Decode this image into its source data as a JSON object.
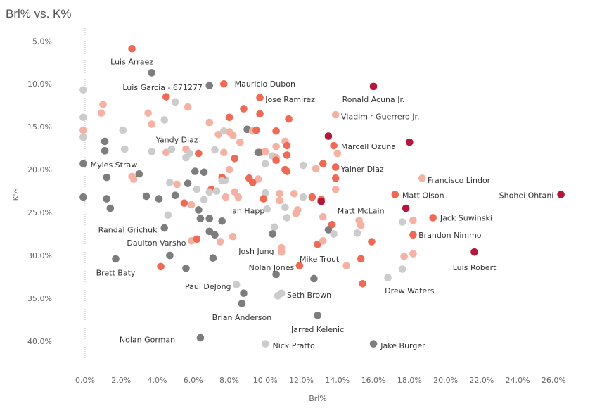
{
  "chart_data": {
    "type": "scatter",
    "title": "Brl% vs. K%",
    "xlabel": "Brl%",
    "ylabel": "K%",
    "xlim": [
      -0.7,
      27.0
    ],
    "ylim": [
      3.5,
      42.3
    ],
    "y_inverted": true,
    "x_ticks": [
      0,
      2,
      4,
      6,
      8,
      10,
      12,
      14,
      16,
      18,
      20,
      22,
      24,
      26
    ],
    "x_tick_labels": [
      "0.0%",
      "2.0%",
      "4.0%",
      "6.0%",
      "8.0%",
      "10.0%",
      "12.0%",
      "14.0%",
      "16.0%",
      "18.0%",
      "20.0%",
      "22.0%",
      "24.0%",
      "26.0%"
    ],
    "y_ticks": [
      5,
      10,
      15,
      20,
      25,
      30,
      35,
      40
    ],
    "y_tick_labels": [
      "5.0%",
      "10.0%",
      "15.0%",
      "20.0%",
      "25.0%",
      "30.0%",
      "35.0%",
      "40.0%"
    ],
    "reference_line_x": 0,
    "colors": {
      "high": "#b2183c",
      "mid": "#ee6a55",
      "light": "#f5b1a3",
      "grey_light": "#cccccc",
      "grey_dark": "#7d7d7d"
    },
    "points": [
      {
        "x": 2.6,
        "y": 5.9,
        "c": "mid",
        "label": "Luis Arraez",
        "lx": 2.6,
        "ly": 7.4,
        "anchor": "middle"
      },
      {
        "x": 3.7,
        "y": 8.7,
        "c": "grey_dark",
        "label": "Luis Garcia - 671277",
        "lx": 4.3,
        "ly": 10.4,
        "anchor": "middle"
      },
      {
        "x": 6.9,
        "y": 10.2,
        "c": "grey_dark"
      },
      {
        "x": 7.7,
        "y": 10.0,
        "c": "mid",
        "label": "Mauricio Dubon",
        "lx": 8.3,
        "ly": 10.0,
        "anchor": "start"
      },
      {
        "x": 16.0,
        "y": 10.3,
        "c": "high",
        "label": "Ronald Acuna Jr.",
        "lx": 16.0,
        "ly": 11.8,
        "anchor": "middle"
      },
      {
        "x": 9.7,
        "y": 11.6,
        "c": "mid",
        "label": "Jose Ramirez",
        "lx": 10.0,
        "ly": 11.8,
        "anchor": "start"
      },
      {
        "x": 13.9,
        "y": 13.6,
        "c": "light",
        "label": "Vladimir Guerrero Jr.",
        "lx": 14.2,
        "ly": 13.8,
        "anchor": "start"
      },
      {
        "x": 13.8,
        "y": 17.2,
        "c": "mid",
        "label": "Marcell Ozuna",
        "lx": 14.2,
        "ly": 17.3,
        "anchor": "start"
      },
      {
        "x": 4.5,
        "y": 18.0,
        "c": "light",
        "label": "Yandy Diaz",
        "lx": 5.1,
        "ly": 16.5,
        "anchor": "middle"
      },
      {
        "x": 13.9,
        "y": 19.7,
        "c": "mid",
        "label": "Yainer Diaz",
        "lx": 14.2,
        "ly": 19.9,
        "anchor": "start"
      },
      {
        "x": -0.1,
        "y": 19.3,
        "c": "grey_dark",
        "label": "Myles Straw",
        "lx": 0.3,
        "ly": 19.4,
        "anchor": "start"
      },
      {
        "x": 18.7,
        "y": 21.0,
        "c": "light",
        "label": "Francisco Lindor",
        "lx": 19.0,
        "ly": 21.2,
        "anchor": "start"
      },
      {
        "x": 17.2,
        "y": 22.9,
        "c": "mid",
        "label": "Matt Olson",
        "lx": 17.6,
        "ly": 23.0,
        "anchor": "start"
      },
      {
        "x": 26.4,
        "y": 22.9,
        "c": "high",
        "label": "Shohei Ohtani",
        "lx": 26.0,
        "ly": 23.0,
        "anchor": "end"
      },
      {
        "x": 7.8,
        "y": 23.2,
        "c": "light",
        "label": "Ian Happ",
        "lx": 9.0,
        "ly": 24.8,
        "anchor": "middle"
      },
      {
        "x": 13.7,
        "y": 26.4,
        "c": "mid",
        "label": "Matt McLain",
        "lx": 14.0,
        "ly": 24.8,
        "anchor": "start"
      },
      {
        "x": 19.3,
        "y": 25.6,
        "c": "mid",
        "label": "Jack Suwinski",
        "lx": 19.7,
        "ly": 25.6,
        "anchor": "start"
      },
      {
        "x": 4.4,
        "y": 26.8,
        "c": "grey_dark",
        "label": "Randal Grichuk",
        "lx": 4.0,
        "ly": 27.0,
        "anchor": "end"
      },
      {
        "x": 18.2,
        "y": 27.6,
        "c": "mid",
        "label": "Brandon Nimmo",
        "lx": 18.5,
        "ly": 27.6,
        "anchor": "start"
      },
      {
        "x": 5.9,
        "y": 28.3,
        "c": "light",
        "label": "Daulton Varsho",
        "lx": 5.6,
        "ly": 28.5,
        "anchor": "end"
      },
      {
        "x": 10.9,
        "y": 29.1,
        "c": "light",
        "label": "Josh Jung",
        "lx": 9.5,
        "ly": 29.5,
        "anchor": "middle"
      },
      {
        "x": 12.9,
        "y": 28.7,
        "c": "mid",
        "label": "Mike Trout",
        "lx": 13.0,
        "ly": 30.4,
        "anchor": "middle"
      },
      {
        "x": 21.6,
        "y": 29.6,
        "c": "high",
        "label": "Luis Robert",
        "lx": 21.6,
        "ly": 31.4,
        "anchor": "middle"
      },
      {
        "x": 1.7,
        "y": 30.4,
        "c": "grey_dark",
        "label": "Brett Baty",
        "lx": 1.7,
        "ly": 32.0,
        "anchor": "middle"
      },
      {
        "x": 11.9,
        "y": 31.2,
        "c": "mid",
        "label": "Nolan Jones",
        "lx": 11.6,
        "ly": 31.4,
        "anchor": "end"
      },
      {
        "x": 8.4,
        "y": 33.4,
        "c": "grey_light",
        "label": "Paul DeJong",
        "lx": 8.1,
        "ly": 33.6,
        "anchor": "end"
      },
      {
        "x": 16.8,
        "y": 32.6,
        "c": "grey_light",
        "label": "Drew Waters",
        "lx": 18.0,
        "ly": 34.1,
        "anchor": "middle"
      },
      {
        "x": 10.9,
        "y": 34.4,
        "c": "grey_light",
        "label": "Seth Brown",
        "lx": 11.2,
        "ly": 34.6,
        "anchor": "start"
      },
      {
        "x": 8.7,
        "y": 35.6,
        "c": "grey_dark",
        "label": "Brian Anderson",
        "lx": 8.7,
        "ly": 37.2,
        "anchor": "middle"
      },
      {
        "x": 12.9,
        "y": 37.0,
        "c": "grey_dark",
        "label": "Jarred Kelenic",
        "lx": 12.9,
        "ly": 38.6,
        "anchor": "middle"
      },
      {
        "x": 6.4,
        "y": 39.6,
        "c": "grey_dark",
        "label": "Nolan Gorman",
        "lx": 5.0,
        "ly": 39.8,
        "anchor": "end"
      },
      {
        "x": 10.0,
        "y": 40.3,
        "c": "grey_light",
        "label": "Nick Pratto",
        "lx": 10.4,
        "ly": 40.5,
        "anchor": "start"
      },
      {
        "x": 16.0,
        "y": 40.3,
        "c": "grey_dark",
        "label": "Jake Burger",
        "lx": 16.4,
        "ly": 40.5,
        "anchor": "start"
      },
      {
        "x": -0.1,
        "y": 10.7,
        "c": "grey_light"
      },
      {
        "x": 1.0,
        "y": 12.4,
        "c": "light"
      },
      {
        "x": 0.9,
        "y": 13.4,
        "c": "light"
      },
      {
        "x": -0.1,
        "y": 13.9,
        "c": "grey_light"
      },
      {
        "x": -0.1,
        "y": 15.4,
        "c": "light"
      },
      {
        "x": -0.1,
        "y": 16.2,
        "c": "grey_light"
      },
      {
        "x": 1.1,
        "y": 16.7,
        "c": "grey_dark"
      },
      {
        "x": 1.1,
        "y": 17.8,
        "c": "grey_dark"
      },
      {
        "x": 2.1,
        "y": 15.4,
        "c": "grey_light"
      },
      {
        "x": 2.2,
        "y": 17.6,
        "c": "grey_light"
      },
      {
        "x": 3.5,
        "y": 13.4,
        "c": "light"
      },
      {
        "x": 3.7,
        "y": 14.7,
        "c": "light"
      },
      {
        "x": 3.7,
        "y": 17.9,
        "c": "grey_light"
      },
      {
        "x": 4.4,
        "y": 14.2,
        "c": "grey_light"
      },
      {
        "x": 4.5,
        "y": 11.5,
        "c": "mid"
      },
      {
        "x": 5.0,
        "y": 12.1,
        "c": "grey_light"
      },
      {
        "x": 5.7,
        "y": 12.7,
        "c": "light"
      },
      {
        "x": 4.8,
        "y": 17.6,
        "c": "grey_light"
      },
      {
        "x": 5.6,
        "y": 17.6,
        "c": "light"
      },
      {
        "x": 5.6,
        "y": 18.6,
        "c": "grey_light"
      },
      {
        "x": 5.8,
        "y": 18.1,
        "c": "grey_light"
      },
      {
        "x": 6.3,
        "y": 18.1,
        "c": "mid"
      },
      {
        "x": 6.9,
        "y": 14.5,
        "c": "light"
      },
      {
        "x": 7.2,
        "y": 17.7,
        "c": "grey_light"
      },
      {
        "x": 7.4,
        "y": 15.9,
        "c": "light"
      },
      {
        "x": 7.7,
        "y": 15.5,
        "c": "grey_light"
      },
      {
        "x": 7.7,
        "y": 18.0,
        "c": "light"
      },
      {
        "x": 8.0,
        "y": 13.9,
        "c": "mid"
      },
      {
        "x": 8.0,
        "y": 15.6,
        "c": "light"
      },
      {
        "x": 8.3,
        "y": 18.7,
        "c": "mid"
      },
      {
        "x": 8.2,
        "y": 16.0,
        "c": "light"
      },
      {
        "x": 8.6,
        "y": 16.8,
        "c": "light"
      },
      {
        "x": 8.8,
        "y": 12.9,
        "c": "mid"
      },
      {
        "x": 9.0,
        "y": 15.3,
        "c": "grey_dark"
      },
      {
        "x": 9.3,
        "y": 15.5,
        "c": "light"
      },
      {
        "x": 9.5,
        "y": 15.4,
        "c": "mid"
      },
      {
        "x": 9.7,
        "y": 13.5,
        "c": "mid"
      },
      {
        "x": 9.7,
        "y": 18.0,
        "c": "mid"
      },
      {
        "x": 9.6,
        "y": 18.0,
        "c": "grey_dark"
      },
      {
        "x": 10.0,
        "y": 17.9,
        "c": "light"
      },
      {
        "x": 10.0,
        "y": 19.3,
        "c": "grey_light"
      },
      {
        "x": 10.4,
        "y": 18.4,
        "c": "grey_light"
      },
      {
        "x": 10.6,
        "y": 18.6,
        "c": "light"
      },
      {
        "x": 10.6,
        "y": 18.9,
        "c": "mid"
      },
      {
        "x": 10.6,
        "y": 15.5,
        "c": "mid"
      },
      {
        "x": 10.6,
        "y": 17.3,
        "c": "light"
      },
      {
        "x": 11.1,
        "y": 16.7,
        "c": "light"
      },
      {
        "x": 11.2,
        "y": 17.2,
        "c": "mid"
      },
      {
        "x": 11.3,
        "y": 14.1,
        "c": "mid"
      },
      {
        "x": 11.2,
        "y": 18.3,
        "c": "mid"
      },
      {
        "x": 11.1,
        "y": 20.0,
        "c": "mid"
      },
      {
        "x": 11.2,
        "y": 20.2,
        "c": "mid"
      },
      {
        "x": 11.6,
        "y": 22.8,
        "c": "light"
      },
      {
        "x": 12.1,
        "y": 19.5,
        "c": "grey_light"
      },
      {
        "x": 12.8,
        "y": 19.9,
        "c": "light"
      },
      {
        "x": 13.2,
        "y": 19.3,
        "c": "mid"
      },
      {
        "x": 13.5,
        "y": 16.1,
        "c": "high"
      },
      {
        "x": 14.0,
        "y": 18.1,
        "c": "light"
      },
      {
        "x": 13.9,
        "y": 21.0,
        "c": "mid"
      },
      {
        "x": 13.9,
        "y": 22.3,
        "c": "light"
      },
      {
        "x": 12.6,
        "y": 23.2,
        "c": "mid"
      },
      {
        "x": 13.1,
        "y": 23.5,
        "c": "mid"
      },
      {
        "x": 12.1,
        "y": 23.2,
        "c": "grey_light"
      },
      {
        "x": 13.1,
        "y": 23.7,
        "c": "high"
      },
      {
        "x": 13.2,
        "y": 25.5,
        "c": "light"
      },
      {
        "x": 13.5,
        "y": 27.0,
        "c": "grey_dark"
      },
      {
        "x": 13.8,
        "y": 27.5,
        "c": "grey_light"
      },
      {
        "x": 13.2,
        "y": 28.3,
        "c": "light"
      },
      {
        "x": 11.8,
        "y": 24.7,
        "c": "light"
      },
      {
        "x": 11.7,
        "y": 25.1,
        "c": "light"
      },
      {
        "x": 11.1,
        "y": 24.4,
        "c": "grey_light"
      },
      {
        "x": 11.2,
        "y": 25.6,
        "c": "grey_light"
      },
      {
        "x": 10.5,
        "y": 26.7,
        "c": "grey_light"
      },
      {
        "x": 10.4,
        "y": 27.5,
        "c": "grey_dark"
      },
      {
        "x": 10.8,
        "y": 22.8,
        "c": "light"
      },
      {
        "x": 10.8,
        "y": 23.6,
        "c": "light"
      },
      {
        "x": 10.1,
        "y": 24.6,
        "c": "grey_light"
      },
      {
        "x": 10.0,
        "y": 22.7,
        "c": "grey_light"
      },
      {
        "x": 9.9,
        "y": 23.4,
        "c": "mid"
      },
      {
        "x": 9.6,
        "y": 21.1,
        "c": "light"
      },
      {
        "x": 9.3,
        "y": 21.5,
        "c": "mid"
      },
      {
        "x": 9.1,
        "y": 21.0,
        "c": "mid"
      },
      {
        "x": 8.5,
        "y": 23.2,
        "c": "light"
      },
      {
        "x": 8.3,
        "y": 22.6,
        "c": "light"
      },
      {
        "x": 8.0,
        "y": 20.0,
        "c": "light"
      },
      {
        "x": 7.8,
        "y": 21.2,
        "c": "grey_light"
      },
      {
        "x": 7.6,
        "y": 20.9,
        "c": "mid"
      },
      {
        "x": 7.6,
        "y": 21.3,
        "c": "grey_light"
      },
      {
        "x": 7.0,
        "y": 22.3,
        "c": "mid"
      },
      {
        "x": 7.3,
        "y": 22.5,
        "c": "grey_light"
      },
      {
        "x": 6.9,
        "y": 22.6,
        "c": "grey_light"
      },
      {
        "x": 6.6,
        "y": 20.3,
        "c": "grey_dark"
      },
      {
        "x": 6.1,
        "y": 20.2,
        "c": "grey_dark"
      },
      {
        "x": 6.2,
        "y": 22.3,
        "c": "grey_light"
      },
      {
        "x": 6.3,
        "y": 24.7,
        "c": "grey_dark"
      },
      {
        "x": 6.6,
        "y": 23.5,
        "c": "grey_light"
      },
      {
        "x": 5.7,
        "y": 21.6,
        "c": "grey_dark"
      },
      {
        "x": 5.5,
        "y": 23.9,
        "c": "mid"
      },
      {
        "x": 5.1,
        "y": 21.7,
        "c": "light"
      },
      {
        "x": 4.7,
        "y": 21.5,
        "c": "grey_light"
      },
      {
        "x": 5.0,
        "y": 23.0,
        "c": "grey_dark"
      },
      {
        "x": 5.9,
        "y": 24.1,
        "c": "light"
      },
      {
        "x": 4.1,
        "y": 23.4,
        "c": "grey_dark"
      },
      {
        "x": 3.4,
        "y": 23.1,
        "c": "grey_dark"
      },
      {
        "x": 3.0,
        "y": 20.5,
        "c": "grey_dark"
      },
      {
        "x": 2.6,
        "y": 20.8,
        "c": "light"
      },
      {
        "x": 2.7,
        "y": 21.1,
        "c": "light"
      },
      {
        "x": 1.2,
        "y": 20.9,
        "c": "grey_dark"
      },
      {
        "x": -0.1,
        "y": 23.2,
        "c": "grey_dark"
      },
      {
        "x": 1.2,
        "y": 23.4,
        "c": "grey_dark"
      },
      {
        "x": 1.4,
        "y": 24.5,
        "c": "grey_dark"
      },
      {
        "x": 4.6,
        "y": 25.3,
        "c": "grey_light"
      },
      {
        "x": 6.4,
        "y": 25.7,
        "c": "grey_dark"
      },
      {
        "x": 6.9,
        "y": 25.7,
        "c": "grey_dark"
      },
      {
        "x": 7.6,
        "y": 26.0,
        "c": "grey_dark"
      },
      {
        "x": 6.2,
        "y": 28.1,
        "c": "mid"
      },
      {
        "x": 6.9,
        "y": 27.2,
        "c": "grey_dark"
      },
      {
        "x": 7.2,
        "y": 27.6,
        "c": "grey_dark"
      },
      {
        "x": 7.5,
        "y": 28.4,
        "c": "light"
      },
      {
        "x": 8.2,
        "y": 27.8,
        "c": "light"
      },
      {
        "x": 4.7,
        "y": 30.0,
        "c": "grey_dark"
      },
      {
        "x": 4.2,
        "y": 31.3,
        "c": "mid"
      },
      {
        "x": 5.6,
        "y": 31.5,
        "c": "grey_dark"
      },
      {
        "x": 7.1,
        "y": 30.3,
        "c": "grey_dark"
      },
      {
        "x": 8.8,
        "y": 34.4,
        "c": "grey_dark"
      },
      {
        "x": 10.6,
        "y": 32.2,
        "c": "grey_dark"
      },
      {
        "x": 10.7,
        "y": 34.7,
        "c": "grey_light"
      },
      {
        "x": 10.9,
        "y": 29.6,
        "c": "light"
      },
      {
        "x": 12.7,
        "y": 32.7,
        "c": "grey_dark"
      },
      {
        "x": 14.5,
        "y": 31.2,
        "c": "light"
      },
      {
        "x": 15.3,
        "y": 30.4,
        "c": "mid"
      },
      {
        "x": 15.4,
        "y": 33.3,
        "c": "mid"
      },
      {
        "x": 15.2,
        "y": 25.9,
        "c": "light"
      },
      {
        "x": 15.3,
        "y": 26.5,
        "c": "light"
      },
      {
        "x": 15.1,
        "y": 27.4,
        "c": "grey_light"
      },
      {
        "x": 15.9,
        "y": 28.4,
        "c": "mid"
      },
      {
        "x": 17.6,
        "y": 26.1,
        "c": "grey_light"
      },
      {
        "x": 17.8,
        "y": 24.5,
        "c": "high"
      },
      {
        "x": 18.0,
        "y": 16.8,
        "c": "high"
      },
      {
        "x": 18.2,
        "y": 25.9,
        "c": "light"
      },
      {
        "x": 17.7,
        "y": 30.1,
        "c": "light"
      },
      {
        "x": 18.2,
        "y": 29.8,
        "c": "light"
      },
      {
        "x": 17.6,
        "y": 31.6,
        "c": "grey_light"
      }
    ]
  }
}
